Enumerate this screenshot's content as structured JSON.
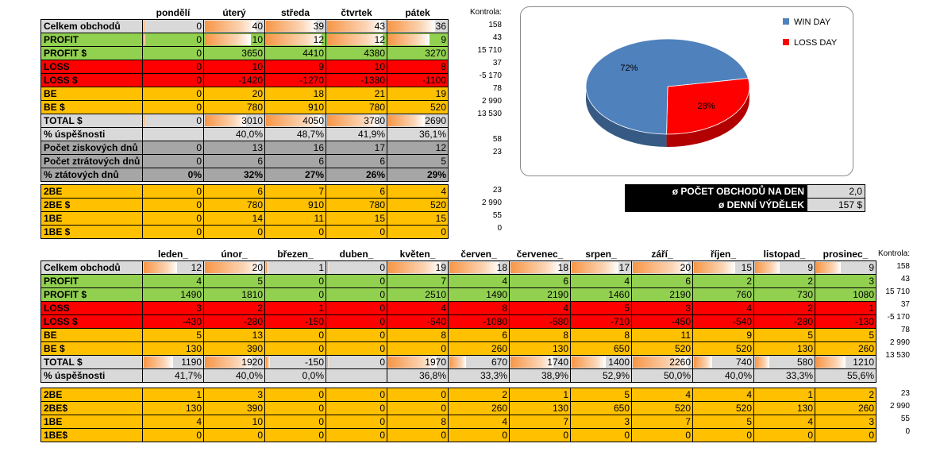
{
  "weekly": {
    "days": [
      "pondělí",
      "úterý",
      "středa",
      "čtvrtek",
      "pátek"
    ],
    "control_header": "Kontrola:",
    "rows": [
      {
        "label": "Celkem obchodů",
        "cls": "lgray",
        "bar": true,
        "vals": [
          "0",
          "40",
          "39",
          "43",
          "36"
        ],
        "ctrl": "158"
      },
      {
        "label": "PROFIT",
        "cls": "green",
        "bar": true,
        "vals": [
          "0",
          "10",
          "12",
          "12",
          "9"
        ],
        "ctrl": "43"
      },
      {
        "label": "PROFIT $",
        "cls": "green",
        "vals": [
          "0",
          "3650",
          "4410",
          "4380",
          "3270"
        ],
        "ctrl": "15 710"
      },
      {
        "label": "LOSS",
        "cls": "red",
        "vals": [
          "0",
          "10",
          "9",
          "10",
          "8"
        ],
        "ctrl": "37"
      },
      {
        "label": "LOSS $",
        "cls": "red",
        "vals": [
          "0",
          "-1420",
          "-1270",
          "-1380",
          "-1100"
        ],
        "ctrl": "-5 170"
      },
      {
        "label": "BE",
        "cls": "orange",
        "vals": [
          "0",
          "20",
          "18",
          "21",
          "19"
        ],
        "ctrl": "78"
      },
      {
        "label": "BE $",
        "cls": "orange",
        "vals": [
          "0",
          "780",
          "910",
          "780",
          "520"
        ],
        "ctrl": "2 990"
      },
      {
        "label": "TOTAL $",
        "cls": "lgray",
        "bar": true,
        "vals": [
          "0",
          "3010",
          "4050",
          "3780",
          "2690"
        ],
        "ctrl": "13 530"
      },
      {
        "label": "% úspěšnosti",
        "cls": "lgray",
        "vals": [
          "",
          "40,0%",
          "48,7%",
          "41,9%",
          "36,1%"
        ],
        "ctrl": ""
      },
      {
        "label": "Počet ziskových dnů",
        "cls": "gray",
        "vals": [
          "0",
          "13",
          "16",
          "17",
          "12"
        ],
        "ctrl": "58"
      },
      {
        "label": "Počet ztrátových dnů",
        "cls": "gray",
        "vals": [
          "0",
          "6",
          "6",
          "6",
          "5"
        ],
        "ctrl": "23"
      },
      {
        "label": "% ztátových dnů",
        "cls": "gray",
        "bold": true,
        "vals": [
          "0%",
          "32%",
          "27%",
          "26%",
          "29%"
        ],
        "ctrl": ""
      }
    ]
  },
  "weekly_be": {
    "rows": [
      {
        "label": "2BE",
        "vals": [
          "0",
          "6",
          "7",
          "6",
          "4"
        ],
        "ctrl": "23"
      },
      {
        "label": "2BE $",
        "vals": [
          "0",
          "780",
          "910",
          "780",
          "520"
        ],
        "ctrl": "2 990"
      },
      {
        "label": "1BE",
        "vals": [
          "0",
          "14",
          "11",
          "15",
          "15"
        ],
        "ctrl": "55"
      },
      {
        "label": "1BE $",
        "vals": [
          "0",
          "0",
          "0",
          "0",
          "0"
        ],
        "ctrl": "0"
      }
    ]
  },
  "chart_data": {
    "type": "pie",
    "categories": [
      "WIN DAY",
      "LOSS DAY"
    ],
    "values": [
      72,
      28
    ],
    "labels": [
      "72%",
      "28%"
    ],
    "colors": [
      "#4f81bd",
      "#ff0000"
    ],
    "legend": "top-right",
    "title": ""
  },
  "averages": [
    {
      "label": "ø POČET OBCHODŮ NA DEN",
      "value": "2,0"
    },
    {
      "label": "ø DENNÍ VÝDĚLEK",
      "value": "157 $"
    }
  ],
  "monthly": {
    "months": [
      "leden_",
      "únor_",
      "březen_",
      "duben_",
      "květen_",
      "červen_",
      "červenec_",
      "srpen_",
      "září_",
      "říjen_",
      "listopad_",
      "prosinec_"
    ],
    "control_header": "Kontrola:",
    "rows": [
      {
        "label": "Celkem obchodů",
        "cls": "lgray",
        "bar": true,
        "vals": [
          "12",
          "20",
          "1",
          "0",
          "19",
          "18",
          "18",
          "17",
          "20",
          "15",
          "9",
          "9"
        ],
        "ctrl": "158"
      },
      {
        "label": "PROFIT",
        "cls": "green",
        "vals": [
          "4",
          "5",
          "0",
          "0",
          "7",
          "4",
          "6",
          "4",
          "6",
          "2",
          "2",
          "3"
        ],
        "ctrl": "43"
      },
      {
        "label": "PROFIT $",
        "cls": "green",
        "vals": [
          "1490",
          "1810",
          "0",
          "0",
          "2510",
          "1490",
          "2190",
          "1460",
          "2190",
          "760",
          "730",
          "1080"
        ],
        "ctrl": "15 710"
      },
      {
        "label": "LOSS",
        "cls": "red",
        "vals": [
          "3",
          "2",
          "1",
          "0",
          "4",
          "8",
          "4",
          "5",
          "3",
          "4",
          "2",
          "1"
        ],
        "ctrl": "37"
      },
      {
        "label": "LOSS $",
        "cls": "red",
        "vals": [
          "-430",
          "-280",
          "-150",
          "0",
          "-540",
          "-1080",
          "-580",
          "-710",
          "-450",
          "-540",
          "-280",
          "-130"
        ],
        "ctrl": "-5 170"
      },
      {
        "label": "BE",
        "cls": "orange",
        "vals": [
          "5",
          "13",
          "0",
          "0",
          "8",
          "6",
          "8",
          "8",
          "11",
          "9",
          "5",
          "5"
        ],
        "ctrl": "78"
      },
      {
        "label": "BE $",
        "cls": "orange",
        "vals": [
          "130",
          "390",
          "0",
          "0",
          "0",
          "260",
          "130",
          "650",
          "520",
          "520",
          "130",
          "260"
        ],
        "ctrl": "2 990"
      },
      {
        "label": "TOTAL $",
        "cls": "lgray",
        "bar": true,
        "vals": [
          "1190",
          "1920",
          "-150",
          "0",
          "1970",
          "670",
          "1740",
          "1400",
          "2260",
          "740",
          "580",
          "1210"
        ],
        "ctrl": "13 530"
      },
      {
        "label": "% úspěšnosti",
        "cls": "lgray",
        "vals": [
          "41,7%",
          "40,0%",
          "0,0%",
          "",
          "36,8%",
          "33,3%",
          "38,9%",
          "52,9%",
          "50,0%",
          "40,0%",
          "33,3%",
          "55,6%"
        ],
        "ctrl": ""
      }
    ]
  },
  "monthly_be": {
    "rows": [
      {
        "label": "2BE",
        "vals": [
          "1",
          "3",
          "0",
          "0",
          "0",
          "2",
          "1",
          "5",
          "4",
          "4",
          "1",
          "2"
        ],
        "ctrl": "23"
      },
      {
        "label": "2BE$",
        "vals": [
          "130",
          "390",
          "0",
          "0",
          "0",
          "260",
          "130",
          "650",
          "520",
          "520",
          "130",
          "260"
        ],
        "ctrl": "2 990"
      },
      {
        "label": "1BE",
        "vals": [
          "4",
          "10",
          "0",
          "0",
          "8",
          "4",
          "7",
          "3",
          "7",
          "5",
          "4",
          "3"
        ],
        "ctrl": "55"
      },
      {
        "label": "1BE$",
        "vals": [
          "0",
          "0",
          "0",
          "0",
          "0",
          "0",
          "0",
          "0",
          "0",
          "0",
          "0",
          "0"
        ],
        "ctrl": "0"
      }
    ]
  }
}
